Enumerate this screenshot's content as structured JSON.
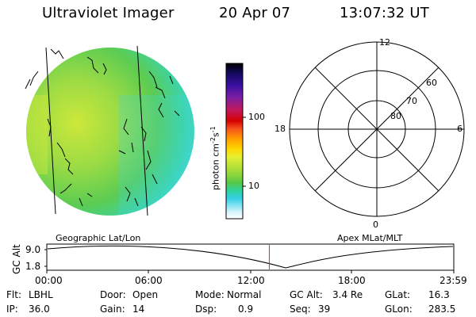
{
  "header": {
    "instrument": "Ultraviolet Imager",
    "date": "20 Apr 07",
    "time": "13:07:32 UT"
  },
  "colorbar": {
    "label": "photon cm-2s-1",
    "ticks": [
      "100",
      "10"
    ],
    "colors": [
      "#000000",
      "#12095a",
      "#3a0fa0",
      "#7b1fa2",
      "#c2185b",
      "#d50000",
      "#f4511e",
      "#ff9800",
      "#ffd600",
      "#e8f032",
      "#b8e23a",
      "#8ad43a",
      "#54c84a",
      "#2ed3a0",
      "#34cfe6",
      "#8fe6f4",
      "#d9f6fb",
      "#ffffff"
    ]
  },
  "polar_grid": {
    "mlt_labels": [
      "12",
      "18",
      "6",
      "0"
    ],
    "lat_labels": [
      "60",
      "70",
      "80"
    ]
  },
  "panel_labels": {
    "left": "Geographic Lat/Lon",
    "right": "Apex MLat/MLT"
  },
  "orbit_plot": {
    "ylabel": "GC Alt",
    "yticks": [
      "9.0",
      "1.8"
    ],
    "time_ticks": [
      "00:00",
      "06:00",
      "12:00",
      "18:00",
      "23:59"
    ],
    "current_time_hours": 13.12,
    "marker_color": "#d32f2f"
  },
  "footer": {
    "flt_label": "Flt:",
    "flt_value": "LBHL",
    "door_label": "Door:",
    "door_value": "Open",
    "mode_label": "Mode:",
    "mode_value": "Normal",
    "gcalt_label": "GC Alt:",
    "gcalt_value": "3.4 Re",
    "glat_label": "GLat:",
    "glat_value": "16.3",
    "ip_label": "IP:",
    "ip_value": "36.0",
    "gain_label": "Gain:",
    "gain_value": "14",
    "dsp_label": "Dsp:",
    "dsp_value": "0.9",
    "seq_label": "Seq:",
    "seq_value": "39",
    "glon_label": "GLon:",
    "glon_value": "283.5"
  }
}
